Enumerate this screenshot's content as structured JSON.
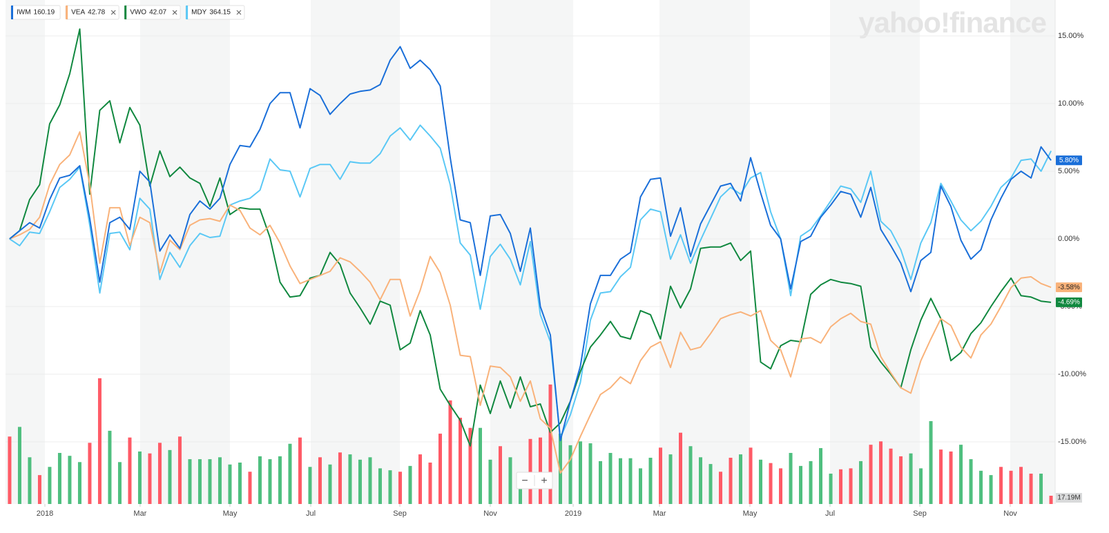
{
  "chart_data": {
    "type": "line",
    "watermark": "yahoo!finance",
    "x": [
      0,
      1,
      2,
      3,
      4,
      5,
      6,
      7,
      8,
      9,
      10,
      11,
      12,
      13,
      14,
      15,
      16,
      17,
      18,
      19,
      20,
      21,
      22,
      23,
      24,
      25,
      26,
      27,
      28,
      29,
      30,
      31,
      32,
      33,
      34,
      35,
      36,
      37,
      38,
      39,
      40,
      41,
      42,
      43,
      44,
      45,
      46,
      47,
      48,
      49,
      50,
      51,
      52,
      53,
      54,
      55,
      56,
      57,
      58,
      59,
      60,
      61,
      62,
      63,
      64,
      65,
      66,
      67,
      68,
      69,
      70,
      71,
      72,
      73,
      74,
      75,
      76,
      77,
      78,
      79,
      80,
      81,
      82,
      83,
      84,
      85,
      86,
      87,
      88,
      89,
      90,
      91,
      92,
      93,
      94,
      95,
      96,
      97,
      98,
      99,
      100,
      101,
      102,
      103,
      104
    ],
    "xlim": [
      -0.41,
      104.41
    ],
    "xticks": [
      {
        "value": 3.52,
        "label": "2018"
      },
      {
        "value": 13.03,
        "label": "Mar"
      },
      {
        "value": 22.0,
        "label": "May"
      },
      {
        "value": 30.07,
        "label": "Jul"
      },
      {
        "value": 38.97,
        "label": "Sep"
      },
      {
        "value": 48.0,
        "label": "Nov"
      },
      {
        "value": 56.28,
        "label": "2019"
      },
      {
        "value": 64.9,
        "label": "Mar"
      },
      {
        "value": 73.93,
        "label": "May"
      },
      {
        "value": 81.93,
        "label": "Jul"
      },
      {
        "value": 90.9,
        "label": "Sep"
      },
      {
        "value": 99.93,
        "label": "Nov"
      }
    ],
    "ylim": [
      -19.59,
      17.65
    ],
    "yticks": [
      {
        "value": 15,
        "label": "15.00%"
      },
      {
        "value": 10,
        "label": "10.00%"
      },
      {
        "value": 5,
        "label": "5.00%"
      },
      {
        "value": 0,
        "label": "0.00%"
      },
      {
        "value": -5,
        "label": "-5.00%"
      },
      {
        "value": -10,
        "label": "-10.00%"
      },
      {
        "value": -15,
        "label": "-15.00%"
      }
    ],
    "grid": true,
    "series": [
      {
        "name": "IWM",
        "price": 160.19,
        "color": "#1a6fd9",
        "label_text_color": "#ffffff",
        "last_value_label": "5.80%",
        "values": [
          0,
          0.6,
          1.2,
          0.8,
          2.9,
          4.5,
          4.7,
          5.4,
          1.5,
          -3.2,
          1.2,
          1.6,
          0.7,
          5.0,
          4.2,
          -0.9,
          0.3,
          -0.7,
          1.8,
          2.8,
          2.2,
          3.0,
          5.5,
          6.9,
          6.8,
          8.1,
          10.0,
          10.8,
          10.8,
          8.2,
          11.1,
          10.6,
          9.2,
          10.0,
          10.7,
          10.9,
          11.0,
          11.4,
          13.2,
          14.2,
          12.6,
          13.2,
          12.5,
          11.3,
          6.0,
          1.4,
          1.2,
          -2.7,
          1.7,
          1.8,
          0.4,
          -2.4,
          0.8,
          -5.0,
          -7.1,
          -14.9,
          -12.0,
          -9.4,
          -4.8,
          -2.7,
          -2.7,
          -1.5,
          -1.0,
          3.1,
          4.4,
          4.5,
          0.2,
          2.3,
          -1.3,
          1.1,
          2.5,
          3.9,
          4.1,
          2.8,
          6.0,
          3.4,
          1.0,
          0.0,
          -3.7,
          -0.2,
          0.2,
          1.6,
          2.5,
          3.5,
          3.3,
          1.6,
          3.8,
          0.7,
          -0.5,
          -1.8,
          -3.9,
          -1.6,
          -1.0,
          3.9,
          2.4,
          -0.1,
          -1.5,
          -0.8,
          1.4,
          3.0,
          4.4,
          5.0,
          4.5,
          6.8,
          5.8
        ]
      },
      {
        "name": "VEA",
        "price": 42.78,
        "color": "#f9b27a",
        "label_text_color": "#222222",
        "last_value_label": "-3.58%",
        "values": [
          0,
          0.3,
          0.7,
          1.6,
          4.0,
          5.5,
          6.2,
          7.9,
          4.0,
          -1.8,
          2.3,
          2.3,
          -0.5,
          1.6,
          1.2,
          -2.5,
          -0.1,
          -0.8,
          1.0,
          1.4,
          1.5,
          1.3,
          2.5,
          2.1,
          0.8,
          0.3,
          1.0,
          -0.3,
          -2.0,
          -3.3,
          -3.0,
          -2.7,
          -2.4,
          -1.4,
          -1.7,
          -2.4,
          -3.2,
          -4.5,
          -3.0,
          -3.0,
          -5.7,
          -3.8,
          -1.3,
          -2.5,
          -4.9,
          -8.6,
          -8.7,
          -12.3,
          -9.4,
          -9.5,
          -10.2,
          -12.0,
          -10.5,
          -13.3,
          -14.0,
          -17.3,
          -16.3,
          -14.6,
          -13.0,
          -11.5,
          -11.0,
          -10.2,
          -10.7,
          -9.0,
          -8.0,
          -7.6,
          -9.5,
          -6.9,
          -8.2,
          -8.0,
          -7.0,
          -5.9,
          -5.6,
          -5.4,
          -5.7,
          -5.3,
          -7.5,
          -8.2,
          -10.2,
          -7.4,
          -7.3,
          -7.7,
          -6.5,
          -5.9,
          -5.5,
          -6.1,
          -6.3,
          -8.7,
          -9.9,
          -11.0,
          -11.4,
          -9.0,
          -7.4,
          -5.9,
          -6.4,
          -8.0,
          -8.8,
          -7.1,
          -6.3,
          -5.0,
          -3.6,
          -2.9,
          -2.8,
          -3.3,
          -3.58
        ]
      },
      {
        "name": "VWO",
        "price": 42.07,
        "color": "#10883f",
        "label_text_color": "#ffffff",
        "last_value_label": "-4.69%",
        "values": [
          0,
          0.6,
          2.9,
          4.0,
          8.5,
          9.9,
          12.2,
          15.5,
          3.3,
          9.5,
          10.2,
          7.1,
          9.7,
          8.4,
          3.9,
          6.5,
          4.6,
          5.3,
          4.5,
          4.1,
          2.4,
          4.5,
          1.8,
          2.3,
          2.2,
          2.2,
          0.1,
          -3.2,
          -4.3,
          -4.2,
          -2.9,
          -2.7,
          -1.0,
          -1.9,
          -4.0,
          -5.1,
          -6.3,
          -4.6,
          -4.9,
          -8.2,
          -7.7,
          -5.3,
          -7.1,
          -11.1,
          -12.3,
          -13.4,
          -15.3,
          -10.8,
          -12.9,
          -10.5,
          -12.5,
          -10.2,
          -12.4,
          -12.2,
          -14.3,
          -13.6,
          -12.0,
          -9.8,
          -8.0,
          -7.1,
          -6.1,
          -7.2,
          -7.4,
          -5.3,
          -5.6,
          -7.4,
          -3.5,
          -5.1,
          -3.7,
          -0.7,
          -0.6,
          -0.6,
          -0.3,
          -1.6,
          -0.9,
          -9.1,
          -9.6,
          -7.9,
          -7.5,
          -7.6,
          -4.1,
          -3.4,
          -3.0,
          -3.2,
          -3.3,
          -3.5,
          -8.0,
          -9.1,
          -10.0,
          -11.0,
          -8.2,
          -6.0,
          -4.4,
          -5.9,
          -9.0,
          -8.4,
          -7.0,
          -6.2,
          -5.0,
          -3.9,
          -2.9,
          -4.2,
          -4.3,
          -4.6,
          -4.69
        ]
      },
      {
        "name": "MDY",
        "price": 364.15,
        "color": "#5ac8f5",
        "values": [
          0,
          -0.5,
          0.5,
          0.4,
          2.0,
          3.8,
          4.4,
          5.3,
          1.0,
          -4.0,
          0.4,
          0.5,
          -0.8,
          3.0,
          2.2,
          -3.0,
          -1.0,
          -2.1,
          -0.5,
          0.4,
          0.1,
          0.2,
          2.5,
          2.8,
          3.0,
          3.6,
          5.9,
          5.1,
          5.0,
          3.1,
          5.2,
          5.5,
          5.5,
          4.4,
          5.7,
          5.6,
          5.6,
          6.3,
          7.6,
          8.2,
          7.3,
          8.4,
          7.6,
          6.7,
          4.0,
          -0.3,
          -1.2,
          -5.2,
          -1.3,
          -0.4,
          -1.5,
          -3.4,
          -0.2,
          -5.6,
          -7.6,
          -14.7,
          -13.0,
          -10.6,
          -6.0,
          -4.0,
          -3.9,
          -2.8,
          -2.1,
          1.4,
          2.2,
          2.0,
          -1.5,
          0.3,
          -1.8,
          -0.1,
          1.5,
          3.1,
          3.8,
          3.3,
          4.5,
          4.9,
          2.0,
          0.0,
          -4.2,
          0.2,
          0.7,
          1.7,
          2.8,
          3.9,
          3.7,
          2.7,
          5.0,
          1.3,
          0.6,
          -0.8,
          -3.0,
          -0.3,
          1.2,
          4.1,
          2.8,
          1.4,
          0.6,
          1.3,
          2.4,
          3.8,
          4.5,
          5.8,
          5.9,
          5.0,
          6.5
        ]
      }
    ],
    "volume": {
      "type": "bar",
      "ylim": [
        0,
        1046
      ],
      "last_value_label": "17.19M",
      "values": [
        140,
        160,
        97,
        60,
        77,
        106,
        100,
        87,
        127,
        261,
        152,
        87,
        138,
        109,
        105,
        127,
        112,
        140,
        93,
        93,
        93,
        97,
        82,
        86,
        67,
        99,
        93,
        99,
        125,
        138,
        77,
        97,
        82,
        107,
        103,
        92,
        97,
        74,
        70,
        67,
        79,
        103,
        86,
        146,
        215,
        179,
        158,
        158,
        92,
        120,
        97,
        43,
        135,
        138,
        248,
        146,
        122,
        130,
        126,
        89,
        106,
        95,
        95,
        74,
        96,
        117,
        103,
        148,
        120,
        97,
        83,
        67,
        96,
        103,
        117,
        92,
        85,
        74,
        106,
        79,
        89,
        116,
        63,
        72,
        74,
        89,
        123,
        130,
        115,
        99,
        105,
        74,
        172,
        113,
        109,
        123,
        93,
        69,
        60,
        77,
        69,
        77,
        63,
        63,
        17.19
      ],
      "colors": [
        "#ff5a66",
        "#4fbf7f",
        "#4fbf7f",
        "#ff5a66",
        "#4fbf7f",
        "#4fbf7f",
        "#4fbf7f",
        "#4fbf7f",
        "#ff5a66",
        "#ff5a66",
        "#4fbf7f",
        "#4fbf7f",
        "#ff5a66",
        "#4fbf7f",
        "#ff5a66",
        "#ff5a66",
        "#4fbf7f",
        "#ff5a66",
        "#4fbf7f",
        "#4fbf7f",
        "#4fbf7f",
        "#4fbf7f",
        "#4fbf7f",
        "#4fbf7f",
        "#ff5a66",
        "#4fbf7f",
        "#4fbf7f",
        "#4fbf7f",
        "#4fbf7f",
        "#ff5a66",
        "#4fbf7f",
        "#ff5a66",
        "#4fbf7f",
        "#ff5a66",
        "#4fbf7f",
        "#4fbf7f",
        "#4fbf7f",
        "#4fbf7f",
        "#4fbf7f",
        "#ff5a66",
        "#4fbf7f",
        "#ff5a66",
        "#ff5a66",
        "#ff5a66",
        "#ff5a66",
        "#ff5a66",
        "#ff5a66",
        "#4fbf7f",
        "#4fbf7f",
        "#ff5a66",
        "#4fbf7f",
        "#4fbf7f",
        "#ff5a66",
        "#ff5a66",
        "#ff5a66",
        "#4fbf7f",
        "#4fbf7f",
        "#4fbf7f",
        "#4fbf7f",
        "#4fbf7f",
        "#4fbf7f",
        "#4fbf7f",
        "#4fbf7f",
        "#4fbf7f",
        "#4fbf7f",
        "#ff5a66",
        "#4fbf7f",
        "#ff5a66",
        "#4fbf7f",
        "#4fbf7f",
        "#4fbf7f",
        "#ff5a66",
        "#ff5a66",
        "#4fbf7f",
        "#ff5a66",
        "#4fbf7f",
        "#ff5a66",
        "#ff5a66",
        "#4fbf7f",
        "#4fbf7f",
        "#4fbf7f",
        "#4fbf7f",
        "#4fbf7f",
        "#ff5a66",
        "#ff5a66",
        "#4fbf7f",
        "#ff5a66",
        "#ff5a66",
        "#ff5a66",
        "#ff5a66",
        "#4fbf7f",
        "#4fbf7f",
        "#4fbf7f",
        "#ff5a66",
        "#ff5a66",
        "#4fbf7f",
        "#4fbf7f",
        "#4fbf7f",
        "#4fbf7f",
        "#ff5a66",
        "#ff5a66",
        "#ff5a66",
        "#ff5a66",
        "#4fbf7f",
        "#ff5a66"
      ]
    },
    "zoom": [
      "−",
      "+"
    ]
  }
}
